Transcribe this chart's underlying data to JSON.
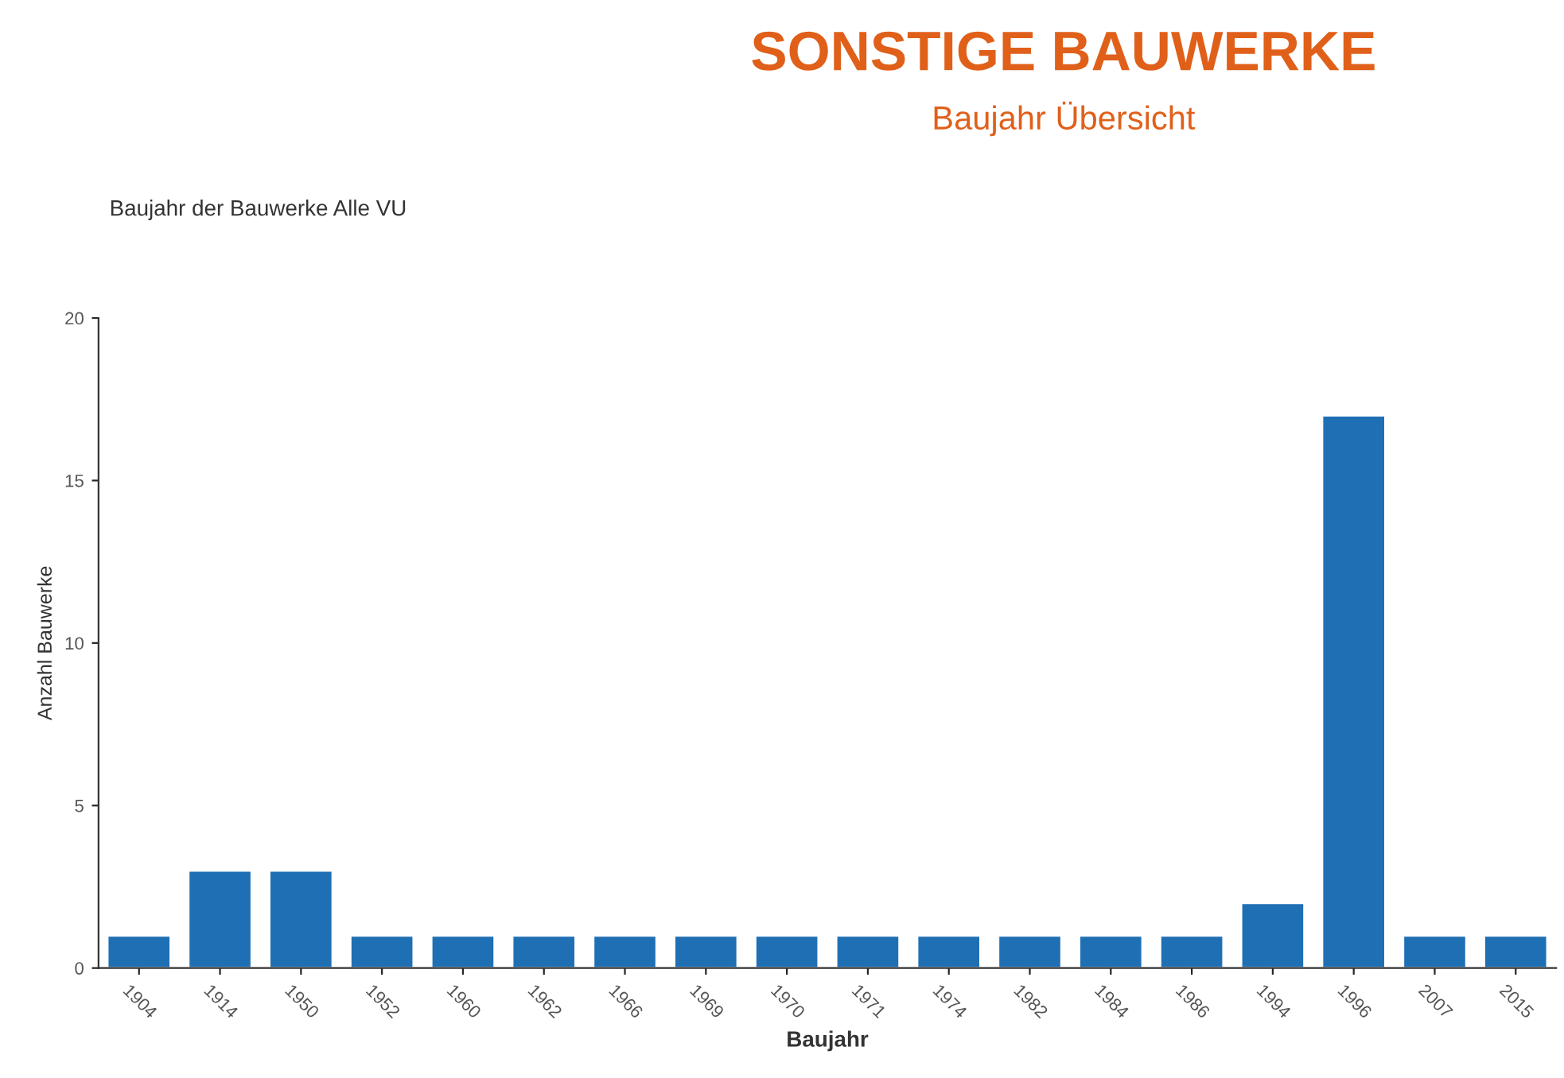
{
  "chart_data": {
    "type": "bar",
    "title": "SONSTIGE BAUWERKE",
    "subtitle": "Baujahr Übersicht",
    "annotations": [
      "Baujahr der Bauwerke Alle VU"
    ],
    "xlabel": "Baujahr",
    "ylabel": "Anzahl Bauwerke",
    "categories": [
      "1904",
      "1914",
      "1950",
      "1952",
      "1960",
      "1962",
      "1966",
      "1969",
      "1970",
      "1971",
      "1974",
      "1982",
      "1984",
      "1986",
      "1994",
      "1996",
      "2007",
      "2015"
    ],
    "values": [
      1,
      3,
      3,
      1,
      1,
      1,
      1,
      1,
      1,
      1,
      1,
      1,
      1,
      1,
      2,
      17,
      1,
      1
    ],
    "color": "#1f6fb4",
    "ylim": [
      0,
      20
    ],
    "yticks": [
      0,
      5,
      10,
      15,
      20
    ],
    "grid": false
  }
}
